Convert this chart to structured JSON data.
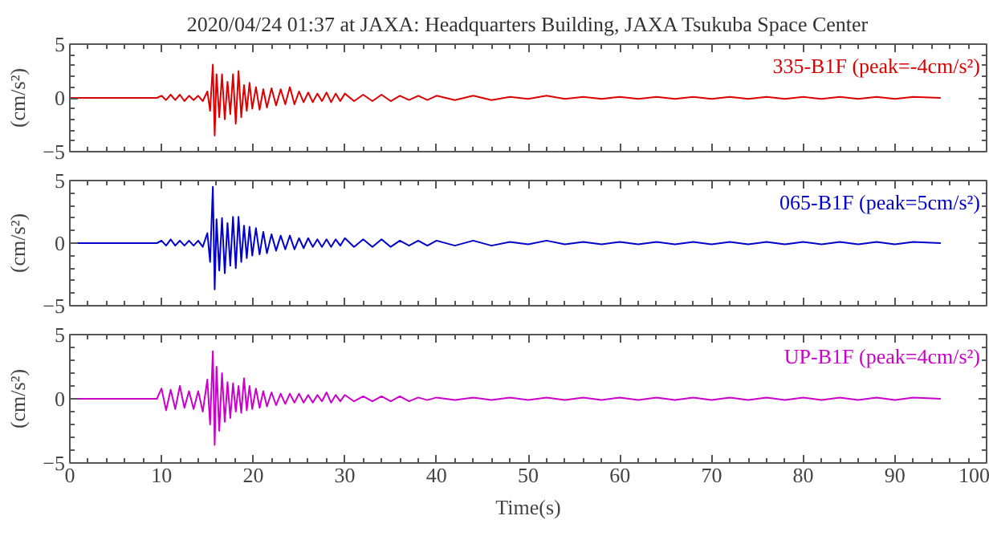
{
  "chart_data": [
    {
      "type": "line",
      "title": "2020/04/24 01:37 at JAXA: Headquarters Building, JAXA Tsukuba Space Center",
      "ylabel": "(cm/s²)",
      "tick_labels": "y",
      "xlim": [
        0,
        100
      ],
      "xticks": [
        0,
        10,
        20,
        30,
        40,
        50,
        60,
        70,
        80,
        90,
        100
      ],
      "ylim": [
        -5,
        5
      ],
      "yticks": [
        -5,
        0,
        5
      ],
      "x": [
        0,
        9.5,
        10,
        10.5,
        11,
        11.5,
        12,
        12.5,
        13,
        13.5,
        14,
        14.5,
        15,
        15.3,
        15.6,
        15.8,
        16,
        16.3,
        16.6,
        16.9,
        17.2,
        17.5,
        17.8,
        18.1,
        18.4,
        18.7,
        19,
        19.3,
        19.6,
        19.9,
        20.3,
        20.7,
        21.1,
        21.5,
        22,
        22.5,
        23,
        23.5,
        24,
        24.5,
        25,
        25.5,
        26,
        26.5,
        27,
        27.5,
        28,
        28.5,
        29,
        29.5,
        30,
        31,
        32,
        33,
        34,
        35,
        36,
        37,
        38,
        39,
        40,
        42,
        44,
        46,
        48,
        50,
        52,
        54,
        56,
        58,
        60,
        62,
        64,
        66,
        68,
        70,
        72,
        74,
        76,
        78,
        80,
        82,
        84,
        86,
        88,
        90,
        92,
        95
      ],
      "series": [
        {
          "name": "335-B1F (peak=-4cm/s²)",
          "color": "#dd0000",
          "values": [
            0,
            0,
            0.2,
            -0.2,
            0.3,
            -0.2,
            0.3,
            -0.3,
            0.2,
            -0.2,
            0.2,
            -0.3,
            0.6,
            -1.2,
            3.1,
            -3.5,
            2.2,
            -1.8,
            2.2,
            -2.0,
            1.5,
            -1.5,
            2.2,
            -2.4,
            2.5,
            -1.8,
            1.2,
            -1.2,
            1.4,
            -1.0,
            1.0,
            -1.1,
            0.8,
            -0.9,
            0.9,
            -0.7,
            0.8,
            -0.6,
            1.0,
            -0.6,
            0.6,
            -0.4,
            0.5,
            -0.4,
            0.4,
            -0.3,
            0.5,
            -0.4,
            0.4,
            -0.3,
            0.4,
            -0.3,
            0.3,
            -0.3,
            0.3,
            -0.3,
            0.2,
            -0.2,
            0.2,
            -0.2,
            0.2,
            -0.2,
            0.2,
            -0.2,
            0.1,
            -0.1,
            0.2,
            -0.1,
            0.1,
            -0.1,
            0.1,
            -0.1,
            0.1,
            -0.1,
            0.1,
            -0.1,
            0.1,
            -0.1,
            0.1,
            -0.1,
            0.1,
            -0.1,
            0.1,
            -0.1,
            0.1,
            -0.1,
            0.1,
            0
          ]
        }
      ]
    },
    {
      "type": "line",
      "ylabel": "(cm/s²)",
      "tick_labels": "y",
      "xlim": [
        0,
        100
      ],
      "xticks": [
        0,
        10,
        20,
        30,
        40,
        50,
        60,
        70,
        80,
        90,
        100
      ],
      "ylim": [
        -5,
        5
      ],
      "yticks": [
        -5,
        0,
        5
      ],
      "x": [
        0,
        9.5,
        10,
        10.5,
        11,
        11.5,
        12,
        12.5,
        13,
        13.5,
        14,
        14.5,
        15,
        15.3,
        15.6,
        15.8,
        16,
        16.3,
        16.6,
        16.9,
        17.2,
        17.5,
        17.8,
        18.1,
        18.4,
        18.7,
        19,
        19.3,
        19.6,
        19.9,
        20.3,
        20.7,
        21.1,
        21.5,
        22,
        22.5,
        23,
        23.5,
        24,
        24.5,
        25,
        25.5,
        26,
        26.5,
        27,
        27.5,
        28,
        28.5,
        29,
        29.5,
        30,
        31,
        32,
        33,
        34,
        35,
        36,
        37,
        38,
        39,
        40,
        42,
        44,
        46,
        48,
        50,
        52,
        54,
        56,
        58,
        60,
        62,
        64,
        66,
        68,
        70,
        72,
        74,
        76,
        78,
        80,
        82,
        84,
        86,
        88,
        90,
        92,
        95
      ],
      "series": [
        {
          "name": "065-B1F (peak=5cm/s²)",
          "color": "#0000cc",
          "values": [
            0,
            0,
            0.2,
            -0.2,
            0.3,
            -0.2,
            0.2,
            -0.2,
            0.2,
            -0.2,
            0.2,
            -0.3,
            0.8,
            -1.5,
            4.5,
            -3.7,
            1.9,
            -2.2,
            2.0,
            -2.4,
            1.6,
            -1.8,
            2.1,
            -2.0,
            2.1,
            -1.5,
            1.4,
            -1.2,
            1.3,
            -1.0,
            1.2,
            -0.9,
            0.9,
            -0.8,
            0.7,
            -0.6,
            0.6,
            -0.5,
            0.6,
            -0.5,
            0.4,
            -0.4,
            0.4,
            -0.3,
            0.3,
            -0.3,
            0.3,
            -0.3,
            0.3,
            -0.2,
            0.4,
            -0.3,
            0.3,
            -0.3,
            0.3,
            -0.3,
            0.2,
            -0.2,
            0.2,
            -0.2,
            0.2,
            -0.2,
            0.2,
            -0.2,
            0.1,
            -0.1,
            0.2,
            -0.1,
            0.1,
            -0.1,
            0.1,
            -0.1,
            0.1,
            -0.1,
            0.1,
            -0.1,
            0.1,
            -0.1,
            0.1,
            -0.1,
            0.1,
            -0.1,
            0.1,
            -0.1,
            0.1,
            -0.1,
            0.1,
            0
          ]
        }
      ]
    },
    {
      "type": "line",
      "xlabel": "Time(s)",
      "ylabel": "(cm/s²)",
      "xlim": [
        0,
        100
      ],
      "xticks": [
        0,
        10,
        20,
        30,
        40,
        50,
        60,
        70,
        80,
        90,
        100
      ],
      "ylim": [
        -5,
        5
      ],
      "yticks": [
        -5,
        0,
        5
      ],
      "x": [
        0,
        9.5,
        10,
        10.5,
        11,
        11.5,
        12,
        12.5,
        13,
        13.5,
        14,
        14.5,
        15,
        15.3,
        15.6,
        15.8,
        16,
        16.3,
        16.6,
        16.9,
        17.2,
        17.5,
        17.8,
        18.1,
        18.4,
        18.7,
        19,
        19.3,
        19.6,
        19.9,
        20.3,
        20.7,
        21.1,
        21.5,
        22,
        22.5,
        23,
        23.5,
        24,
        24.5,
        25,
        25.5,
        26,
        26.5,
        27,
        27.5,
        28,
        28.5,
        29,
        29.5,
        30,
        31,
        32,
        33,
        34,
        35,
        36,
        37,
        38,
        39,
        40,
        42,
        44,
        46,
        48,
        50,
        52,
        54,
        56,
        58,
        60,
        62,
        64,
        66,
        68,
        70,
        72,
        74,
        76,
        78,
        80,
        82,
        84,
        86,
        88,
        90,
        92,
        95
      ],
      "series": [
        {
          "name": "UP-B1F (peak=4cm/s²)",
          "color": "#cc00cc",
          "values": [
            0,
            0,
            0.8,
            -0.9,
            0.7,
            -0.8,
            1.0,
            -0.7,
            0.6,
            -0.8,
            0.6,
            -1.0,
            1.5,
            -2.0,
            3.7,
            -3.6,
            2.5,
            -2.5,
            2.0,
            -1.8,
            1.3,
            -1.5,
            1.2,
            -1.0,
            1.0,
            -1.1,
            1.6,
            -0.9,
            1.0,
            -0.8,
            0.8,
            -0.7,
            0.6,
            -0.6,
            0.5,
            -0.5,
            0.4,
            -0.4,
            0.4,
            -0.3,
            0.4,
            -0.3,
            0.3,
            -0.3,
            0.3,
            -0.2,
            0.5,
            -0.3,
            0.3,
            -0.2,
            0.3,
            -0.2,
            0.2,
            -0.2,
            0.2,
            -0.2,
            0.2,
            -0.2,
            0.1,
            -0.1,
            0.1,
            -0.1,
            0.1,
            -0.1,
            0.1,
            -0.1,
            0.1,
            -0.1,
            0.1,
            -0.1,
            0.1,
            -0.1,
            0.1,
            -0.1,
            0.1,
            -0.1,
            0.1,
            -0.1,
            0.1,
            -0.1,
            0.1,
            -0.1,
            0.1,
            -0.1,
            0.1,
            -0.1,
            0.1,
            0
          ]
        }
      ]
    }
  ]
}
